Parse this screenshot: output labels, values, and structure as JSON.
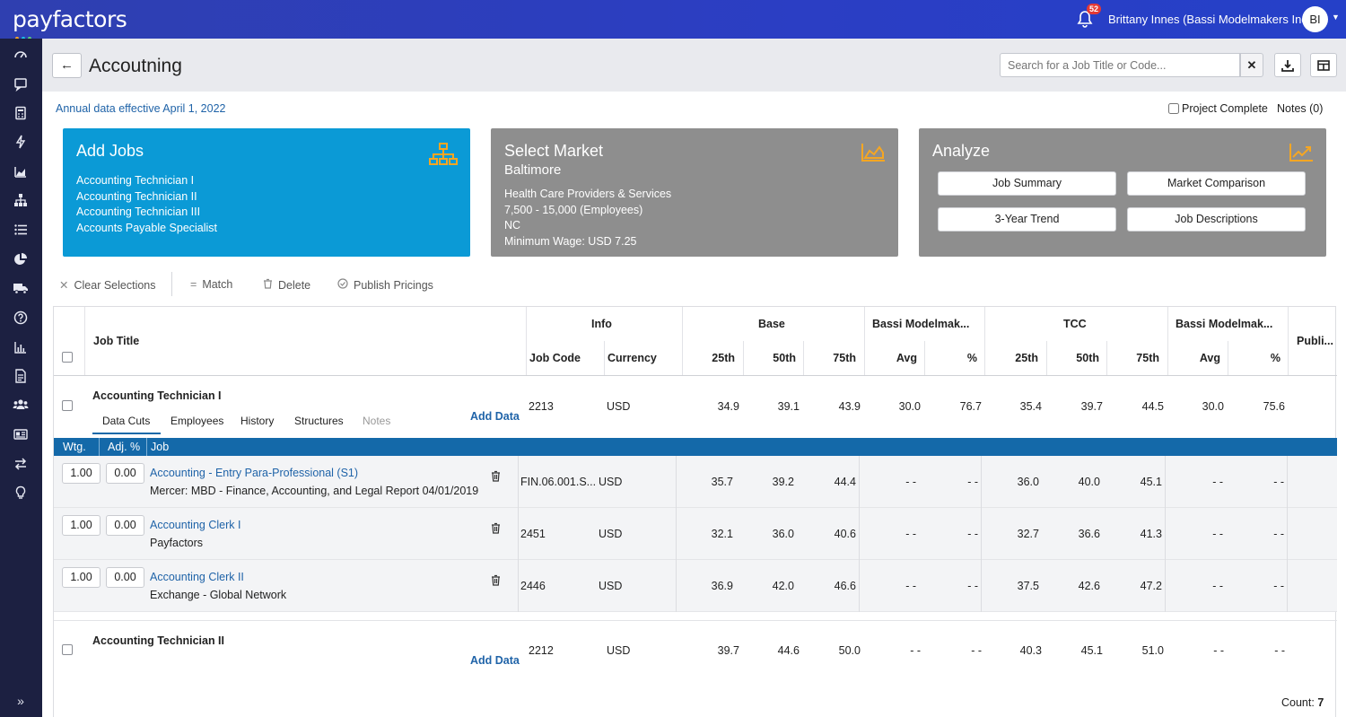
{
  "app": {
    "logo": "payfactors",
    "notification_count": "52",
    "user_name": "Brittany Innes (Bassi Modelmakers Inc.)",
    "avatar_initials": "BI"
  },
  "header": {
    "title": "Accoutning",
    "search_placeholder": "Search for a Job Title or Code..."
  },
  "info": {
    "effective": "Annual data effective April 1, 2022",
    "project_complete": "Project Complete",
    "notes": "Notes (0)"
  },
  "cards": {
    "add_jobs": {
      "title": "Add Jobs",
      "jobs": [
        "Accounting Technician I",
        "Accounting Technician II",
        "Accounting Technician III",
        "Accounts Payable Specialist"
      ]
    },
    "select_market": {
      "title": "Select Market",
      "market": "Baltimore",
      "lines": [
        "Health Care Providers & Services",
        "7,500 - 15,000 (Employees)",
        "NC",
        "Minimum Wage: USD 7.25"
      ]
    },
    "analyze": {
      "title": "Analyze",
      "buttons": [
        "Job Summary",
        "Market Comparison",
        "3-Year Trend",
        "Job Descriptions"
      ]
    }
  },
  "toolbar": {
    "clear": "Clear Selections",
    "match": "Match",
    "delete": "Delete",
    "publish": "Publish Pricings"
  },
  "grid": {
    "group_headers": {
      "job_title": "Job Title",
      "info": "Info",
      "base": "Base",
      "bassi1": "Bassi Modelmak...",
      "tcc": "TCC",
      "bassi2": "Bassi Modelmak...",
      "publish": "Publi..."
    },
    "col_headers": [
      "Job Code",
      "Currency",
      "25th",
      "50th",
      "75th",
      "Avg",
      "%",
      "25th",
      "50th",
      "75th",
      "Avg",
      "%"
    ],
    "tabs": [
      "Data Cuts",
      "Employees",
      "History",
      "Structures",
      "Notes"
    ],
    "add_data": "Add Data",
    "subheader": [
      "Wtg.",
      "Adj. %",
      "Job"
    ],
    "jobs": [
      {
        "title": "Accounting Technician I",
        "values": [
          "2213",
          "USD",
          "34.9",
          "39.1",
          "43.9",
          "30.0",
          "76.7",
          "35.4",
          "39.7",
          "44.5",
          "30.0",
          "75.6"
        ],
        "cuts": [
          {
            "wtg": "1.00",
            "adj": "0.00",
            "job": "Accounting - Entry Para-Professional (S1)",
            "source": "Mercer: MBD - Finance, Accounting, and Legal Report 04/01/2019",
            "values": [
              "FIN.06.001.S...",
              "USD",
              "35.7",
              "39.2",
              "44.4",
              "- -",
              "- -",
              "36.0",
              "40.0",
              "45.1",
              "- -",
              "- -"
            ]
          },
          {
            "wtg": "1.00",
            "adj": "0.00",
            "job": "Accounting Clerk I",
            "source": "Payfactors",
            "values": [
              "2451",
              "USD",
              "32.1",
              "36.0",
              "40.6",
              "- -",
              "- -",
              "32.7",
              "36.6",
              "41.3",
              "- -",
              "- -"
            ]
          },
          {
            "wtg": "1.00",
            "adj": "0.00",
            "job": "Accounting Clerk II",
            "source": "Exchange - Global Network",
            "values": [
              "2446",
              "USD",
              "36.9",
              "42.0",
              "46.6",
              "- -",
              "- -",
              "37.5",
              "42.6",
              "47.2",
              "- -",
              "- -"
            ]
          }
        ]
      },
      {
        "title": "Accounting Technician II",
        "values": [
          "2212",
          "USD",
          "39.7",
          "44.6",
          "50.0",
          "- -",
          "- -",
          "40.3",
          "45.1",
          "51.0",
          "- -",
          "- -"
        ]
      }
    ],
    "count_label": "Count:",
    "count_value": "7"
  },
  "colors": {
    "topbar": "#2b3ec4",
    "sidebar": "#1c2041",
    "add_jobs_card": "#0b9ad6",
    "gray_card": "#8e8e8e",
    "accent_icon": "#f5a623",
    "subheader": "#1469a9",
    "link": "#1f63a8"
  }
}
